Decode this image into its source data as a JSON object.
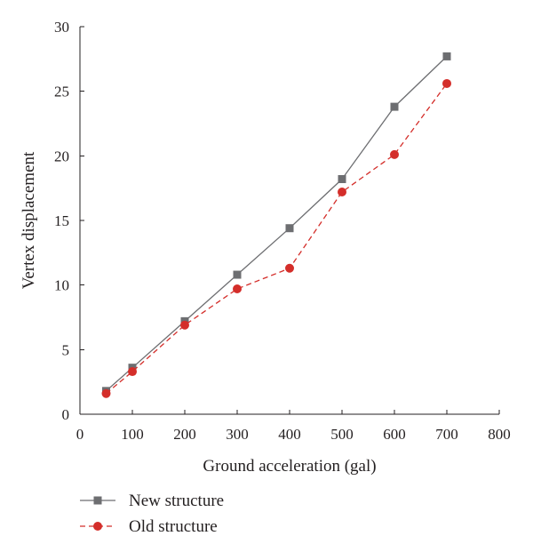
{
  "chart_data": {
    "type": "line",
    "title": "",
    "xlabel": "Ground acceleration (gal)",
    "ylabel": "Vertex displacement",
    "xlim": [
      0,
      800
    ],
    "ylim": [
      0,
      30
    ],
    "xticks": [
      0,
      100,
      200,
      300,
      400,
      500,
      600,
      700,
      800
    ],
    "yticks": [
      0,
      5,
      10,
      15,
      20,
      25,
      30
    ],
    "grid": false,
    "legend_position": "bottom-left",
    "series": [
      {
        "name": "New structure",
        "x": [
          50,
          100,
          200,
          300,
          400,
          500,
          600,
          700
        ],
        "y": [
          1.8,
          3.6,
          7.2,
          10.8,
          14.4,
          18.2,
          23.8,
          27.7
        ],
        "color": "#6d6e71",
        "marker": "square",
        "line_style": "solid"
      },
      {
        "name": "Old structure",
        "x": [
          50,
          100,
          200,
          300,
          400,
          500,
          600,
          700
        ],
        "y": [
          1.6,
          3.3,
          6.9,
          9.7,
          11.3,
          17.2,
          20.1,
          25.6
        ],
        "color": "#d42e2a",
        "marker": "circle",
        "line_style": "dashed"
      }
    ]
  }
}
